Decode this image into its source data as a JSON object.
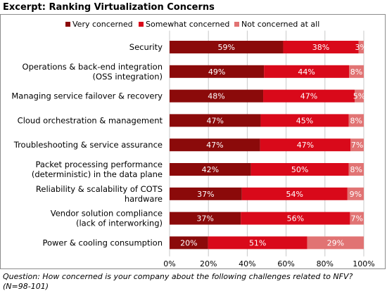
{
  "header": {
    "title": "Excerpt: Ranking Virtualization Concerns"
  },
  "footnote": {
    "line1": "Question: How concerned is your company about the following challenges related to NFV?",
    "line2": "(N=98-101)"
  },
  "colors": {
    "very": "#8B0A0A",
    "somewhat": "#D9091A",
    "not": "#E17373",
    "grid": "#c8c8c8",
    "frame": "#8c8c8c"
  },
  "chart_data": {
    "type": "bar",
    "orientation": "horizontal",
    "stacked": true,
    "title": "Excerpt: Ranking Virtualization Concerns",
    "legend_position": "top",
    "categories": [
      [
        "Security"
      ],
      [
        "Operations & back-end integration",
        "(OSS integration)"
      ],
      [
        "Managing service failover & recovery"
      ],
      [
        "Cloud orchestration & management"
      ],
      [
        "Troubleshooting & service assurance"
      ],
      [
        "Packet processing performance",
        "(deterministic) in the data plane"
      ],
      [
        "Reliability & scalability of COTS",
        "hardware"
      ],
      [
        "Vendor solution compliance",
        "(lack of interworking)"
      ],
      [
        "Power & cooling consumption"
      ]
    ],
    "series": [
      {
        "name": "Very concerned",
        "values": [
          59,
          49,
          48,
          47,
          47,
          42,
          37,
          37,
          20
        ]
      },
      {
        "name": "Somewhat concerned",
        "values": [
          38,
          44,
          47,
          45,
          47,
          50,
          54,
          56,
          51
        ]
      },
      {
        "name": "Not concerned at all",
        "values": [
          3,
          8,
          5,
          8,
          7,
          8,
          9,
          7,
          29
        ]
      }
    ],
    "bar_extents": [
      [
        58.5,
        38.8,
        2.7
      ],
      [
        48.6,
        43.8,
        7.6
      ],
      [
        48.2,
        47.1,
        4.7
      ],
      [
        46.9,
        45.3,
        7.8
      ],
      [
        46.6,
        46.6,
        6.8
      ],
      [
        41.9,
        50.3,
        7.8
      ],
      [
        37.2,
        54.4,
        8.4
      ],
      [
        36.7,
        56.2,
        7.1
      ],
      [
        19.8,
        51.1,
        29.1
      ]
    ],
    "xlim": [
      0,
      100
    ],
    "xticks": [
      "0%",
      "20%",
      "40%",
      "60%",
      "80%",
      "100%"
    ],
    "grid": "vertical"
  }
}
